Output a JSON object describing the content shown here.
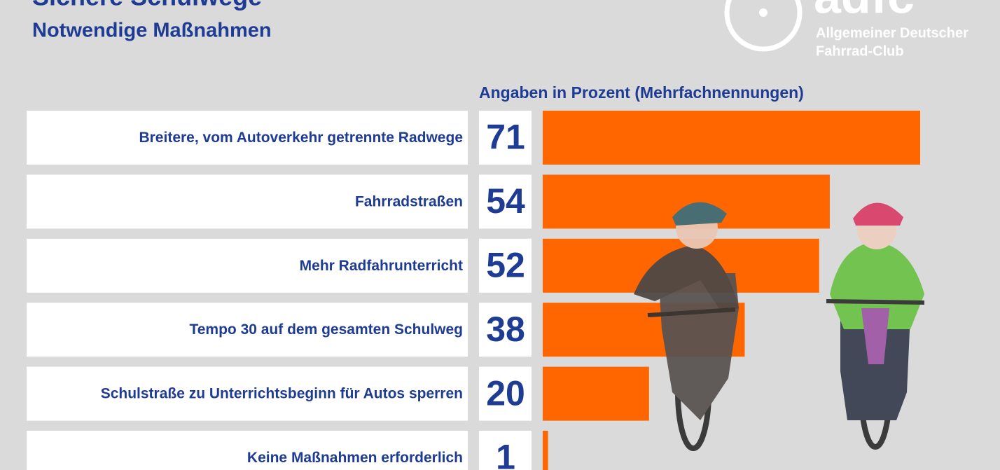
{
  "chart_data": {
    "type": "bar",
    "orientation": "horizontal",
    "title": "Sichere Schulwege",
    "subtitle": "Notwendige Maßnahmen",
    "value_note": "Angaben in Prozent (Mehrfachnennungen)",
    "categories": [
      "Breitere, vom Autoverkehr getrennte Radwege",
      "Fahrradstraßen",
      "Mehr Radfahrunterricht",
      "Tempo 30 auf dem gesamten Schulweg",
      "Schulstraße zu Unterrichtsbeginn für Autos sperren",
      "Keine Maßnahmen erforderlich"
    ],
    "values": [
      71,
      54,
      52,
      38,
      20,
      1
    ],
    "color": "#ff6600"
  },
  "logo": {
    "name": "adfc",
    "line1": "Allgemeiner Deutscher",
    "line2": "Fahrrad-Club"
  }
}
